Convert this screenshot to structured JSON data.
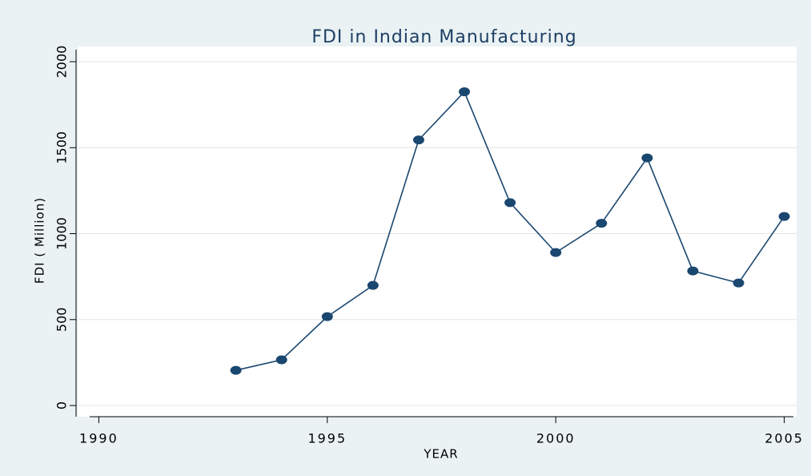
{
  "chart_data": {
    "type": "line",
    "title": "FDI in Indian Manufacturing",
    "x_label": "YEAR",
    "y_label": "FDI ( Million)",
    "x": [
      1993,
      1994,
      1995,
      1996,
      1997,
      1998,
      1999,
      2000,
      2001,
      2002,
      2003,
      2004,
      2005
    ],
    "series": [
      {
        "name": "FDI",
        "color": "#1a476f",
        "values": [
          205,
          266,
          517,
          699,
          1545,
          1825,
          1180,
          890,
          1060,
          1440,
          783,
          713,
          1100
        ]
      }
    ],
    "xlim": [
      1989.8,
      2005.2
    ],
    "xticks": [
      1990,
      1995,
      2000,
      2005
    ],
    "ylim": [
      -65,
      2070
    ],
    "yticks": [
      0,
      500,
      1000,
      1500,
      2000
    ],
    "grid": true
  }
}
